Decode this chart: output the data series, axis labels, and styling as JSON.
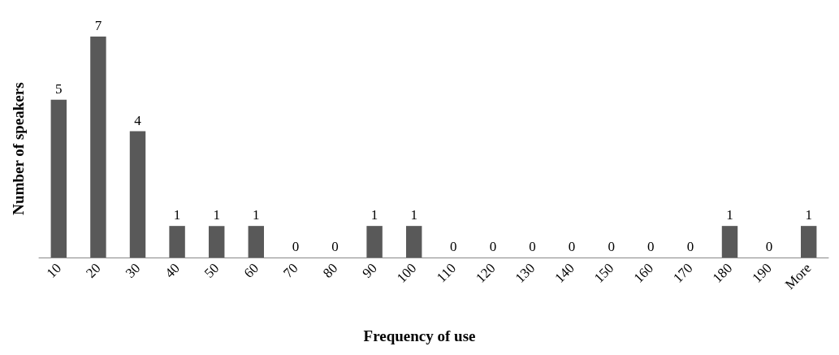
{
  "chart_data": {
    "type": "bar",
    "xlabel": "Frequency of use",
    "ylabel": "Number of speakers",
    "categories": [
      "10",
      "20",
      "30",
      "40",
      "50",
      "60",
      "70",
      "80",
      "90",
      "100",
      "110",
      "120",
      "130",
      "140",
      "150",
      "160",
      "170",
      "180",
      "190",
      "More"
    ],
    "values": [
      5,
      7,
      4,
      1,
      1,
      1,
      0,
      0,
      1,
      1,
      0,
      0,
      0,
      0,
      0,
      0,
      0,
      1,
      0,
      1
    ],
    "color": "#595959",
    "data_labels": true,
    "tick_labels": "x"
  }
}
